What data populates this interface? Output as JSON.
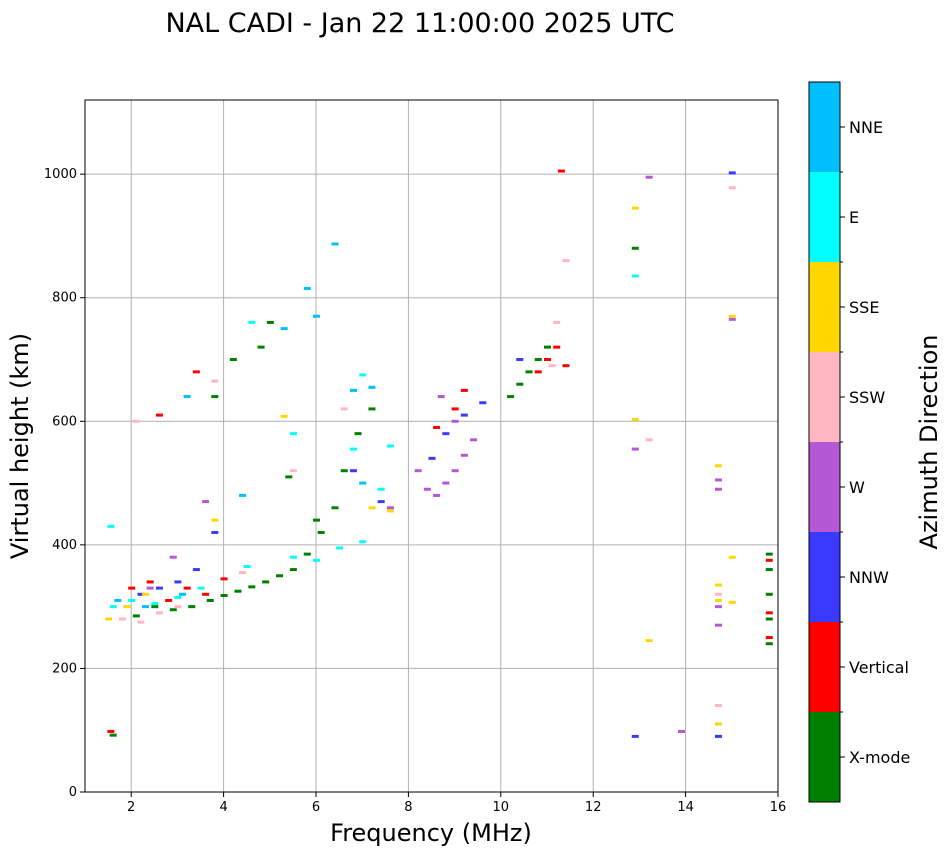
{
  "chart_data": {
    "type": "scatter",
    "title": "NAL CADI - Jan 22 11:00:00 2025 UTC",
    "xlabel": "Frequency (MHz)",
    "ylabel": "Virtual height (km)",
    "xlim": [
      1,
      16
    ],
    "ylim": [
      0,
      1120
    ],
    "xticks": [
      2,
      4,
      6,
      8,
      10,
      12,
      14,
      16
    ],
    "yticks": [
      0,
      200,
      400,
      600,
      800,
      1000
    ],
    "grid": true,
    "colorbar": {
      "label": "Azimuth Direction",
      "categories": [
        {
          "name": "X-mode",
          "color": "#008000"
        },
        {
          "name": "Vertical",
          "color": "#ff0000"
        },
        {
          "name": "NNW",
          "color": "#3a3aff"
        },
        {
          "name": "W",
          "color": "#b558d6"
        },
        {
          "name": "SSW",
          "color": "#ffb6c1"
        },
        {
          "name": "SSE",
          "color": "#ffd700"
        },
        {
          "name": "E",
          "color": "#00ffff"
        },
        {
          "name": "NNE",
          "color": "#00bfff"
        }
      ]
    },
    "series": [
      {
        "name": "X-mode",
        "points": [
          [
            1.6,
            92
          ],
          [
            2.1,
            285
          ],
          [
            2.5,
            300
          ],
          [
            2.9,
            295
          ],
          [
            3.3,
            300
          ],
          [
            3.7,
            310
          ],
          [
            4.0,
            318
          ],
          [
            4.3,
            325
          ],
          [
            4.6,
            332
          ],
          [
            4.9,
            340
          ],
          [
            5.2,
            350
          ],
          [
            5.5,
            360
          ],
          [
            5.8,
            385
          ],
          [
            6.1,
            420
          ],
          [
            6.4,
            460
          ],
          [
            6.6,
            520
          ],
          [
            6.9,
            580
          ],
          [
            7.2,
            620
          ],
          [
            10.2,
            640
          ],
          [
            10.4,
            660
          ],
          [
            10.6,
            680
          ],
          [
            10.8,
            700
          ],
          [
            11.0,
            720
          ],
          [
            12.9,
            880
          ],
          [
            15.8,
            240
          ],
          [
            15.8,
            280
          ],
          [
            15.8,
            320
          ],
          [
            15.8,
            360
          ],
          [
            15.8,
            385
          ],
          [
            4.8,
            720
          ],
          [
            5.0,
            760
          ],
          [
            3.8,
            640
          ],
          [
            4.2,
            700
          ],
          [
            5.4,
            510
          ],
          [
            6.0,
            440
          ]
        ]
      },
      {
        "name": "Vertical",
        "points": [
          [
            1.55,
            98
          ],
          [
            2.0,
            330
          ],
          [
            2.4,
            340
          ],
          [
            2.8,
            310
          ],
          [
            3.2,
            330
          ],
          [
            3.6,
            320
          ],
          [
            4.0,
            345
          ],
          [
            8.6,
            590
          ],
          [
            9.0,
            620
          ],
          [
            9.2,
            650
          ],
          [
            10.8,
            680
          ],
          [
            11.0,
            700
          ],
          [
            11.2,
            720
          ],
          [
            11.4,
            690
          ],
          [
            11.3,
            1005
          ],
          [
            15.8,
            250
          ],
          [
            15.8,
            290
          ],
          [
            15.8,
            375
          ],
          [
            3.4,
            680
          ],
          [
            2.6,
            610
          ]
        ]
      },
      {
        "name": "NNW",
        "points": [
          [
            2.2,
            320
          ],
          [
            2.6,
            330
          ],
          [
            3.0,
            340
          ],
          [
            3.4,
            360
          ],
          [
            6.8,
            520
          ],
          [
            7.4,
            470
          ],
          [
            8.5,
            540
          ],
          [
            8.8,
            580
          ],
          [
            9.2,
            610
          ],
          [
            9.6,
            630
          ],
          [
            10.4,
            700
          ],
          [
            12.9,
            90
          ],
          [
            14.7,
            90
          ],
          [
            15.0,
            1002
          ],
          [
            3.8,
            420
          ]
        ]
      },
      {
        "name": "W",
        "points": [
          [
            2.4,
            330
          ],
          [
            2.9,
            380
          ],
          [
            3.6,
            470
          ],
          [
            7.6,
            460
          ],
          [
            8.2,
            520
          ],
          [
            8.4,
            490
          ],
          [
            8.6,
            480
          ],
          [
            8.8,
            500
          ],
          [
            9.0,
            520
          ],
          [
            9.2,
            545
          ],
          [
            9.4,
            570
          ],
          [
            8.7,
            640
          ],
          [
            9.0,
            600
          ],
          [
            12.9,
            555
          ],
          [
            13.9,
            98
          ],
          [
            14.7,
            270
          ],
          [
            14.7,
            300
          ],
          [
            14.7,
            490
          ],
          [
            14.7,
            505
          ],
          [
            15.0,
            765
          ],
          [
            13.2,
            995
          ]
        ]
      },
      {
        "name": "SSW",
        "points": [
          [
            1.8,
            280
          ],
          [
            2.2,
            275
          ],
          [
            2.6,
            290
          ],
          [
            3.0,
            300
          ],
          [
            4.4,
            355
          ],
          [
            5.5,
            520
          ],
          [
            6.6,
            620
          ],
          [
            11.2,
            760
          ],
          [
            11.4,
            860
          ],
          [
            11.1,
            690
          ],
          [
            13.2,
            570
          ],
          [
            14.7,
            140
          ],
          [
            14.7,
            320
          ],
          [
            15.0,
            978
          ],
          [
            2.1,
            600
          ],
          [
            3.8,
            665
          ]
        ]
      },
      {
        "name": "SSE",
        "points": [
          [
            1.5,
            280
          ],
          [
            1.9,
            300
          ],
          [
            2.3,
            320
          ],
          [
            3.8,
            440
          ],
          [
            5.3,
            608
          ],
          [
            7.2,
            460
          ],
          [
            7.6,
            455
          ],
          [
            12.9,
            945
          ],
          [
            12.9,
            603
          ],
          [
            13.2,
            245
          ],
          [
            14.7,
            110
          ],
          [
            14.7,
            335
          ],
          [
            14.7,
            310
          ],
          [
            14.7,
            528
          ],
          [
            15.0,
            770
          ],
          [
            15.0,
            380
          ],
          [
            15.0,
            307
          ]
        ]
      },
      {
        "name": "E",
        "points": [
          [
            1.55,
            430
          ],
          [
            1.6,
            300
          ],
          [
            2.0,
            310
          ],
          [
            2.5,
            305
          ],
          [
            3.0,
            315
          ],
          [
            3.5,
            330
          ],
          [
            4.5,
            365
          ],
          [
            5.5,
            380
          ],
          [
            6.0,
            375
          ],
          [
            6.5,
            395
          ],
          [
            7.0,
            405
          ],
          [
            7.4,
            490
          ],
          [
            7.6,
            560
          ],
          [
            6.8,
            555
          ],
          [
            12.9,
            835
          ],
          [
            5.5,
            580
          ],
          [
            4.6,
            760
          ],
          [
            7.0,
            675
          ]
        ]
      },
      {
        "name": "NNE",
        "points": [
          [
            1.7,
            310
          ],
          [
            2.3,
            300
          ],
          [
            3.1,
            320
          ],
          [
            5.3,
            750
          ],
          [
            5.8,
            815
          ],
          [
            6.0,
            770
          ],
          [
            6.4,
            887
          ],
          [
            6.8,
            650
          ],
          [
            7.2,
            655
          ],
          [
            7.0,
            500
          ],
          [
            4.4,
            480
          ],
          [
            3.2,
            640
          ]
        ]
      }
    ]
  }
}
